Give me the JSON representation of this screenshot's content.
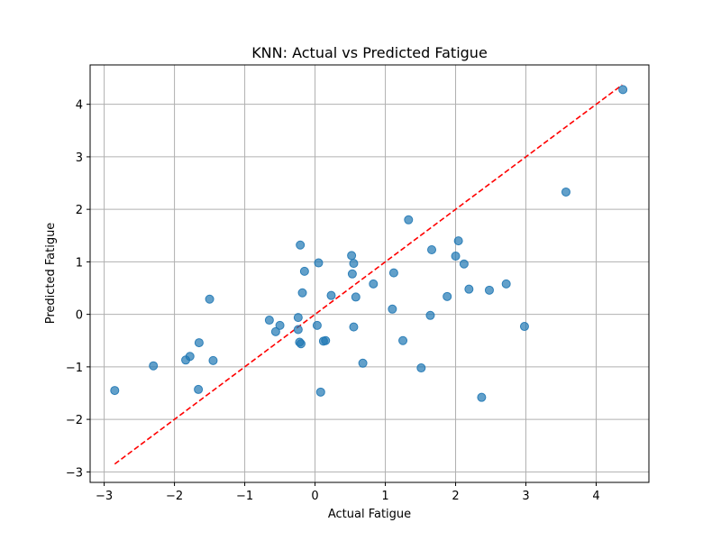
{
  "chart_data": {
    "type": "scatter",
    "title": "KNN: Actual vs Predicted Fatigue",
    "xlabel": "Actual Fatigue",
    "ylabel": "Predicted Fatigue",
    "xlim": [
      -3.2,
      4.75
    ],
    "ylim": [
      -3.2,
      4.75
    ],
    "xticks": [
      -3,
      -2,
      -1,
      0,
      1,
      2,
      3,
      4
    ],
    "yticks": [
      -3,
      -2,
      -1,
      0,
      1,
      2,
      3,
      4
    ],
    "xtick_labels": [
      "−3",
      "−2",
      "−1",
      "0",
      "1",
      "2",
      "3",
      "4"
    ],
    "ytick_labels": [
      "−3",
      "−2",
      "−1",
      "0",
      "1",
      "2",
      "3",
      "4"
    ],
    "grid": true,
    "point_color": "#1f77b4",
    "line_color": "#ff0000",
    "reference_line": {
      "style": "dashed",
      "x": [
        -2.85,
        4.37
      ],
      "y": [
        -2.85,
        4.37
      ]
    },
    "points": [
      [
        -2.85,
        -1.45
      ],
      [
        -2.3,
        -0.98
      ],
      [
        -1.84,
        -0.87
      ],
      [
        -1.78,
        -0.8
      ],
      [
        -1.65,
        -0.54
      ],
      [
        -1.66,
        -1.43
      ],
      [
        -1.5,
        0.29
      ],
      [
        -1.45,
        -0.88
      ],
      [
        -0.65,
        -0.11
      ],
      [
        -0.56,
        -0.33
      ],
      [
        -0.5,
        -0.21
      ],
      [
        -0.24,
        -0.06
      ],
      [
        -0.24,
        -0.29
      ],
      [
        -0.22,
        -0.53
      ],
      [
        -0.2,
        -0.56
      ],
      [
        -0.21,
        1.32
      ],
      [
        -0.18,
        0.41
      ],
      [
        -0.15,
        0.82
      ],
      [
        0.03,
        -0.21
      ],
      [
        0.05,
        0.98
      ],
      [
        0.08,
        -1.48
      ],
      [
        0.12,
        -0.51
      ],
      [
        0.15,
        -0.5
      ],
      [
        0.23,
        0.36
      ],
      [
        0.52,
        1.12
      ],
      [
        0.53,
        0.77
      ],
      [
        0.55,
        0.97
      ],
      [
        0.55,
        -0.24
      ],
      [
        0.58,
        0.33
      ],
      [
        0.68,
        -0.93
      ],
      [
        0.83,
        0.58
      ],
      [
        1.1,
        0.1
      ],
      [
        1.12,
        0.79
      ],
      [
        1.25,
        -0.5
      ],
      [
        1.33,
        1.8
      ],
      [
        1.51,
        -1.02
      ],
      [
        1.64,
        -0.02
      ],
      [
        1.66,
        1.23
      ],
      [
        1.88,
        0.34
      ],
      [
        2.0,
        1.11
      ],
      [
        2.04,
        1.4
      ],
      [
        2.12,
        0.96
      ],
      [
        2.19,
        0.48
      ],
      [
        2.37,
        -1.58
      ],
      [
        2.48,
        0.46
      ],
      [
        2.72,
        0.58
      ],
      [
        2.98,
        -0.23
      ],
      [
        3.57,
        2.33
      ],
      [
        4.38,
        4.28
      ]
    ]
  }
}
